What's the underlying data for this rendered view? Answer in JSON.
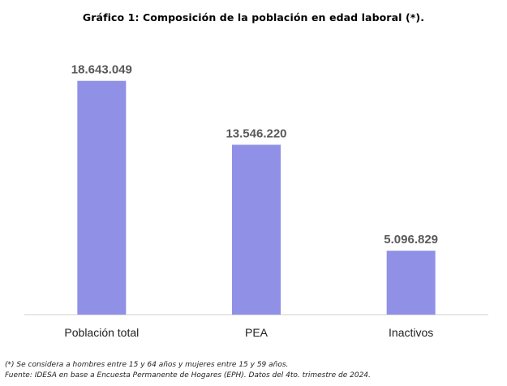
{
  "chart_data": {
    "type": "bar",
    "title": "Gráfico 1: Composición de la población en edad laboral (*).",
    "categories": [
      "Población total",
      "PEA",
      "Inactivos"
    ],
    "values": [
      18643049,
      13546220,
      5096829
    ],
    "value_labels": [
      "18.643.049",
      "13.546.220",
      "5.096.829"
    ],
    "ylim": [
      0,
      20500000
    ],
    "grid": false,
    "colors": {
      "bar": "#9090e6",
      "axis": "#d0d0d0"
    }
  },
  "notes": {
    "line1": "(*) Se considera a hombres entre 15 y 64 años y mujeres entre 15 y 59 años.",
    "line2": "Fuente: IDESA en base a Encuesta Permanente de Hogares (EPH). Datos del 4to. trimestre de 2024."
  }
}
